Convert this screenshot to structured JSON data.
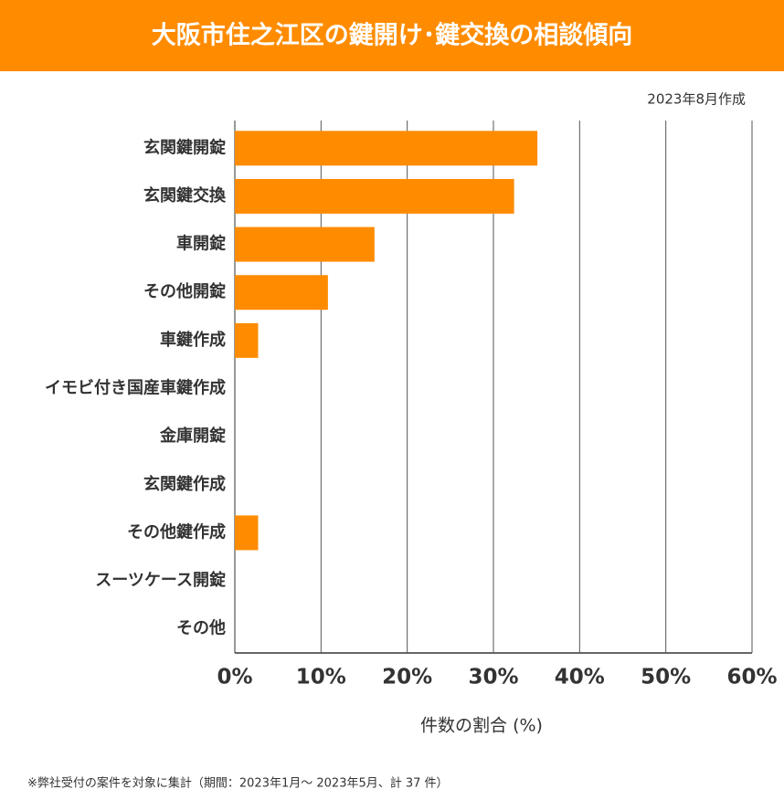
{
  "chart_data": {
    "type": "bar",
    "orientation": "horizontal",
    "title": "大阪市住之江区の鍵開け･鍵交換の相談傾向",
    "subtitle": "2023年8月作成",
    "x_label": "件数の割合 (%)",
    "footnote": "※弊社受付の案件を対象に集計（期間：2023年1月～ 2023年5月、計 37 件）",
    "categories": [
      "玄関鍵開錠",
      "玄関鍵交換",
      "車開錠",
      "その他開錠",
      "車鍵作成",
      "イモビ付き国産車鍵作成",
      "金庫開錠",
      "玄関鍵作成",
      "その他鍵作成",
      "スーツケース開錠",
      "その他"
    ],
    "values": [
      35.1,
      32.4,
      16.2,
      10.8,
      2.7,
      0,
      0,
      0,
      2.7,
      0,
      0
    ],
    "color": "#ff8c00",
    "xlim": [
      0,
      60
    ],
    "xticks": [
      {
        "value": 0,
        "label": "0%"
      },
      {
        "value": 10,
        "label": "10%"
      },
      {
        "value": 20,
        "label": "20%"
      },
      {
        "value": 30,
        "label": "30%"
      },
      {
        "value": 40,
        "label": "40%"
      },
      {
        "value": 50,
        "label": "50%"
      },
      {
        "value": 60,
        "label": "60%"
      }
    ],
    "grid": true
  }
}
